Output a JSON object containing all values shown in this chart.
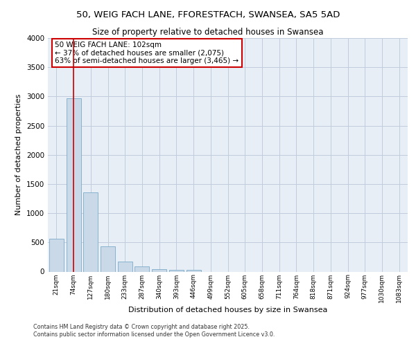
{
  "title_line1": "50, WEIG FACH LANE, FFORESTFACH, SWANSEA, SA5 5AD",
  "title_line2": "Size of property relative to detached houses in Swansea",
  "xlabel": "Distribution of detached houses by size in Swansea",
  "ylabel": "Number of detached properties",
  "footnote1": "Contains HM Land Registry data © Crown copyright and database right 2025.",
  "footnote2": "Contains public sector information licensed under the Open Government Licence v3.0.",
  "bar_color": "#c9d9e8",
  "bar_edge_color": "#7aaac8",
  "grid_color": "#c0ccdd",
  "background_color": "#e8eef5",
  "vline_color": "#cc0000",
  "vline_x": 1.0,
  "annotation_text": "50 WEIG FACH LANE: 102sqm\n← 37% of detached houses are smaller (2,075)\n63% of semi-detached houses are larger (3,465) →",
  "annotation_box_color": "#cc0000",
  "categories": [
    "21sqm",
    "74sqm",
    "127sqm",
    "180sqm",
    "233sqm",
    "287sqm",
    "340sqm",
    "393sqm",
    "446sqm",
    "499sqm",
    "552sqm",
    "605sqm",
    "658sqm",
    "711sqm",
    "764sqm",
    "818sqm",
    "871sqm",
    "924sqm",
    "977sqm",
    "1030sqm",
    "1083sqm"
  ],
  "values": [
    560,
    2970,
    1360,
    430,
    175,
    85,
    40,
    30,
    25,
    0,
    0,
    0,
    0,
    0,
    0,
    0,
    0,
    0,
    0,
    0,
    0
  ],
  "ylim": [
    0,
    4000
  ],
  "yticks": [
    0,
    500,
    1000,
    1500,
    2000,
    2500,
    3000,
    3500,
    4000
  ]
}
